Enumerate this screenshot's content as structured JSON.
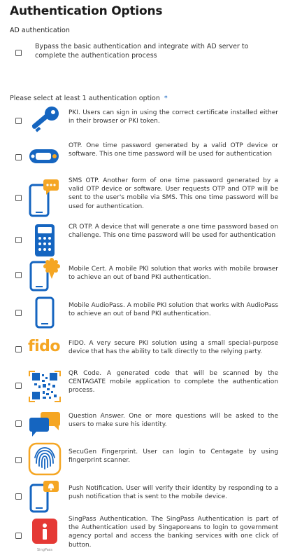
{
  "page": {
    "title": "Authentication Options",
    "ad_section_label": "AD authentication",
    "bypass_text": "Bypass the basic authentication and integrate with AD server to complete the authentication process",
    "select_label": "Please select at least 1 authentication option",
    "required_marker": "*"
  },
  "options": [
    {
      "icon": "key-icon",
      "text": "PKI. Users can sign in using the correct certificate installed either in their browser or PKI token."
    },
    {
      "icon": "otp-token-icon",
      "text": "OTP. One time password generated by a valid OTP device or software. This one time password will be used for authentication"
    },
    {
      "icon": "sms-phone-icon",
      "text": "SMS OTP. Another form of one time password generated by a valid OTP device or software. User requests OTP and OTP will be sent to the user's mobile via SMS. This one time password will be used for authentication."
    },
    {
      "icon": "calculator-icon",
      "text": "CR OTP. A device that will generate a one time password based on challenge. This one time password will be used for authentication"
    },
    {
      "icon": "mobile-cert-icon",
      "text": "Mobile Cert. A mobile PKI solution that works with mobile browser to achieve an out of band PKI authentication."
    },
    {
      "icon": "mobile-phone-icon",
      "text": "Mobile AudioPass. A mobile PKI solution that works with AudioPass to achieve an out of band PKI authentication."
    },
    {
      "icon": "fido-logo",
      "text": "FIDO. A very secure PKI solution using a small special-purpose device that has the ability to talk directly to the relying party."
    },
    {
      "icon": "qr-code-icon",
      "text": "QR Code. A generated code that will be scanned by the CENTAGATE mobile application to complete the authentication process."
    },
    {
      "icon": "chat-bubbles-icon",
      "text": "Question Answer. One or more questions will be asked to the users to make sure his identity."
    },
    {
      "icon": "fingerprint-icon",
      "text": "SecuGen Fingerprint. User can login to Centagate by using fingerprint scanner."
    },
    {
      "icon": "push-notification-icon",
      "text": "Push Notification. User will verify their identity by responding to a push notification that is sent to the mobile device."
    },
    {
      "icon": "singpass-logo",
      "text": "SingPass Authentication. The SingPass Authentication is part of the Authentication used by Singaporeans to login to government agency portal and access the banking services with one click of button."
    }
  ],
  "logos": {
    "fido": "fido",
    "singpass": "SingPass"
  },
  "colors": {
    "primary_blue": "#1565c0",
    "accent_yellow": "#f5a623",
    "singpass_red": "#e53935"
  }
}
